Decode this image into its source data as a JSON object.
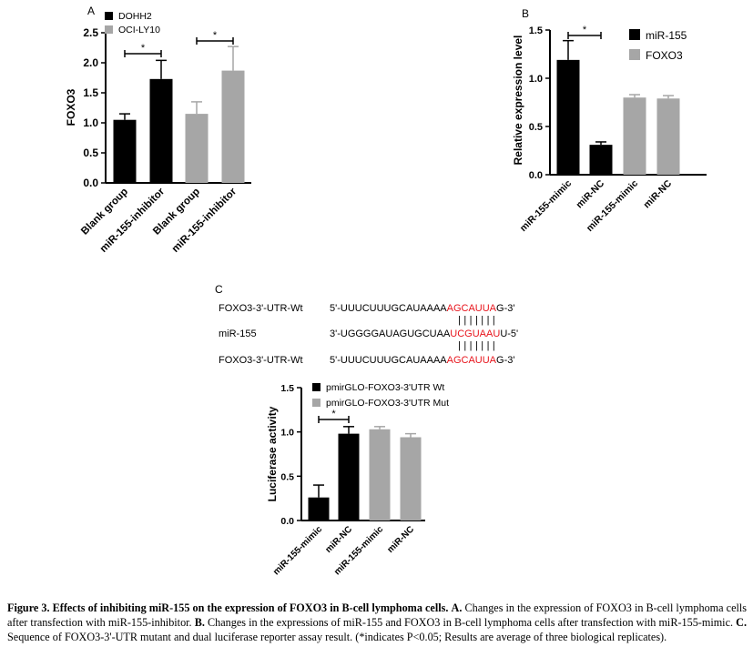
{
  "panels": {
    "A": {
      "letter": "A",
      "chart_data": {
        "type": "bar",
        "ylabel": "FOXO3",
        "ylim": [
          0,
          2.5
        ],
        "yticks": [
          "0.0",
          "0.5",
          "1.0",
          "1.5",
          "2.0",
          "2.5"
        ],
        "categories": [
          "Blank group",
          "miR-155-inhibitor",
          "Blank group",
          "miR-155-inhibitor"
        ],
        "values": [
          1.05,
          1.73,
          1.15,
          1.87
        ],
        "errors": [
          0.1,
          0.31,
          0.2,
          0.4
        ],
        "bar_colors": [
          "#000000",
          "#000000",
          "#a6a6a6",
          "#a6a6a6"
        ],
        "legend": [
          {
            "name": "DOHH2",
            "color": "#000000"
          },
          {
            "name": "OCI-LY10",
            "color": "#a6a6a6"
          }
        ],
        "legend_position": "top",
        "significance": [
          {
            "from": 0,
            "to": 1,
            "label": "*"
          },
          {
            "from": 2,
            "to": 3,
            "label": "*"
          }
        ]
      }
    },
    "B": {
      "letter": "B",
      "chart_data": {
        "type": "bar",
        "ylabel": "Relative expression level",
        "ylim": [
          0,
          1.5
        ],
        "yticks": [
          "0.0",
          "0.5",
          "1.0",
          "1.5"
        ],
        "categories": [
          "miR-155-mimic",
          "miR-NC",
          "miR-155-mimic",
          "miR-NC"
        ],
        "values": [
          1.19,
          0.31,
          0.8,
          0.79
        ],
        "errors": [
          0.2,
          0.03,
          0.03,
          0.03
        ],
        "bar_colors": [
          "#000000",
          "#000000",
          "#a6a6a6",
          "#a6a6a6"
        ],
        "legend": [
          {
            "name": "miR-155",
            "color": "#000000"
          },
          {
            "name": "FOXO3",
            "color": "#a6a6a6"
          }
        ],
        "legend_position": "right",
        "significance": [
          {
            "from": 0,
            "to": 1,
            "label": "*"
          }
        ]
      }
    },
    "C": {
      "letter": "C",
      "sequences": [
        {
          "label": "FOXO3-3'-UTR-Wt",
          "prefix": "5'-UUUCUUUGCAUAAAA",
          "highlight": "AGCAUUA",
          "suffix": "G-3'"
        },
        {
          "label": "miR-155",
          "prefix": "3'-UGGGGAUAGUGCUAA",
          "highlight": "UCGUAAU",
          "suffix": "U-5'"
        },
        {
          "label": "FOXO3-3'-UTR-Wt",
          "prefix": "5'-UUUCUUUGCAUAAAA",
          "highlight": "AGCAUUA",
          "suffix": "G-3'"
        }
      ],
      "pairing_bars": "| | | | | | |",
      "chart_data": {
        "type": "bar",
        "ylabel": "Luciferase activity",
        "ylim": [
          0,
          1.5
        ],
        "yticks": [
          "0.0",
          "0.5",
          "1.0",
          "1.5"
        ],
        "categories": [
          "miR-155-mimic",
          "miR-NC",
          "miR-155-mimic",
          "miR-NC"
        ],
        "values": [
          0.26,
          0.98,
          1.03,
          0.94
        ],
        "errors": [
          0.14,
          0.08,
          0.03,
          0.04
        ],
        "bar_colors": [
          "#000000",
          "#000000",
          "#a6a6a6",
          "#a6a6a6"
        ],
        "legend": [
          {
            "name": "pmirGLO-FOXO3-3'UTR Wt",
            "color": "#000000"
          },
          {
            "name": "pmirGLO-FOXO3-3'UTR Mut",
            "color": "#a6a6a6"
          }
        ],
        "legend_position": "top",
        "significance": [
          {
            "from": 0,
            "to": 1,
            "label": "*"
          }
        ]
      }
    }
  },
  "colors": {
    "highlight": "#e8141c",
    "black_bar": "#000000",
    "gray_bar": "#a6a6a6"
  },
  "caption": {
    "bold": "Figure 3. Effects of inhibiting miR-155 on the expression of FOXO3 in B-cell lymphoma cells.",
    "a_label": "A.",
    "a_text": " Changes in the expression of FOXO3 in B-cell lymphoma cells after transfection with miR-155-inhibitor. ",
    "b_label": "B.",
    "b_text": " Changes in the expressions of miR-155 and FOXO3 in B-cell lymphoma cells after transfection with miR-155-mimic. ",
    "c_label": "C.",
    "c_text": " Sequence of FOXO3-3'-UTR mutant and dual luciferase reporter assay result. (*indicates P<0.05; Results are average of three biological replicates)."
  }
}
